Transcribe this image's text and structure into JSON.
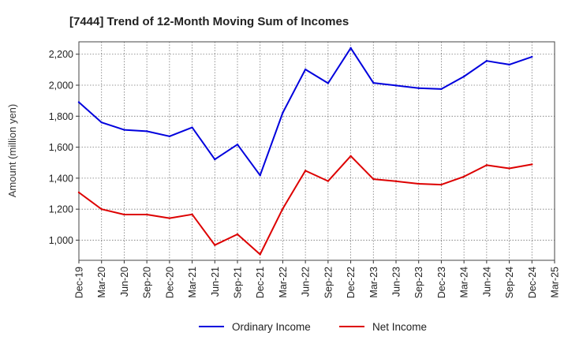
{
  "chart_data": {
    "type": "line",
    "title": "[7444]  Trend of 12-Month Moving Sum of Incomes",
    "xlabel": "",
    "ylabel": "Amount (million yen)",
    "ylim": [
      870,
      2280
    ],
    "yticks": [
      1000,
      1200,
      1400,
      1600,
      1800,
      2000,
      2200
    ],
    "ytick_labels": [
      "1,000",
      "1,200",
      "1,400",
      "1,600",
      "1,800",
      "2,000",
      "2,200"
    ],
    "grid": true,
    "legend_position": "bottom-center",
    "categories": [
      "Dec-19",
      "Mar-20",
      "Jun-20",
      "Sep-20",
      "Dec-20",
      "Mar-21",
      "Jun-21",
      "Sep-21",
      "Dec-21",
      "Mar-22",
      "Jun-22",
      "Sep-22",
      "Dec-22",
      "Mar-23",
      "Jun-23",
      "Sep-23",
      "Dec-23",
      "Mar-24",
      "Jun-24",
      "Sep-24",
      "Dec-24",
      "Mar-25"
    ],
    "series": [
      {
        "name": "Ordinary Income",
        "color": "#0000dd",
        "values": [
          1890,
          1760,
          1712,
          1703,
          1670,
          1727,
          1521,
          1617,
          1418,
          1822,
          2102,
          2013,
          2240,
          2015,
          1998,
          1981,
          1975,
          2056,
          2157,
          2133,
          2183,
          null
        ]
      },
      {
        "name": "Net Income",
        "color": "#dd0000",
        "values": [
          1308,
          1200,
          1165,
          1165,
          1142,
          1166,
          968,
          1038,
          908,
          1203,
          1448,
          1381,
          1543,
          1394,
          1380,
          1364,
          1358,
          1410,
          1484,
          1463,
          1489,
          null
        ]
      }
    ]
  }
}
